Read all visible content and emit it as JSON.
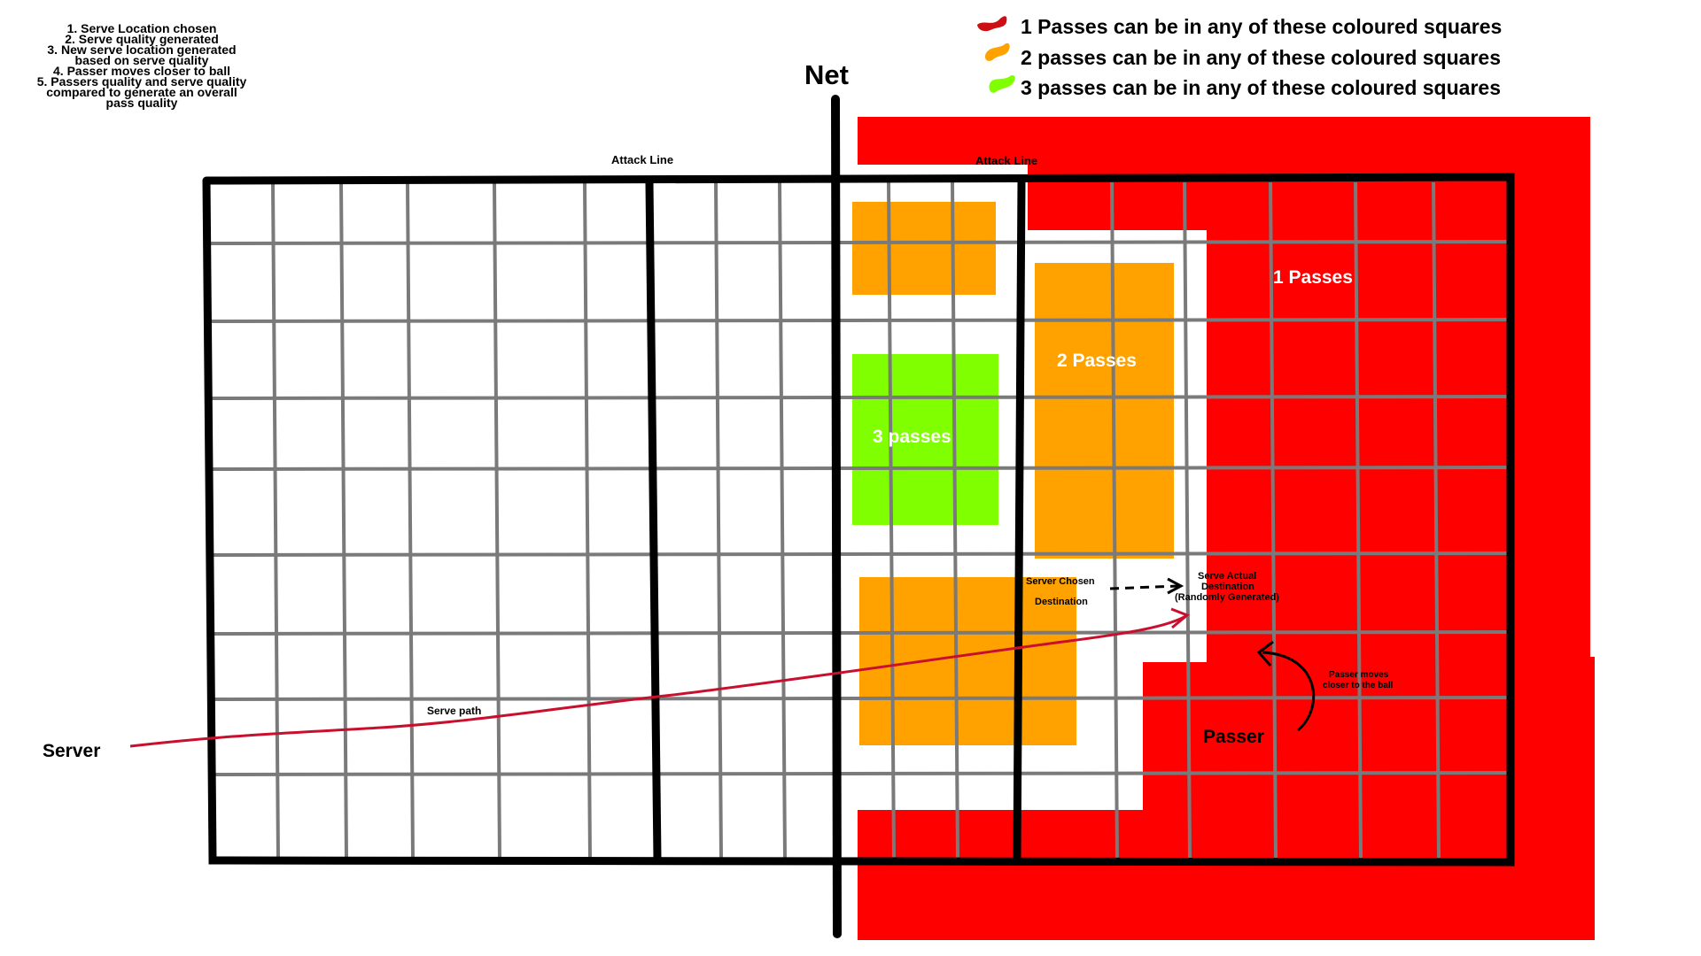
{
  "steps": [
    "1. Serve Location chosen",
    "2. Serve quality generated",
    "3. New serve location generated",
    "based on serve quality",
    "4. Passer moves closer to ball",
    "5. Passers quality and serve quality",
    "compared to generate an overall",
    "pass quality"
  ],
  "legend": [
    {
      "label": "1 Passes can be in any of these coloured squares",
      "color": "#cc0e15"
    },
    {
      "label": "2 passes can be in any of these coloured squares",
      "color": "#ffa200"
    },
    {
      "label": "3 passes can be in any of these coloured squares",
      "color": "#7fff00"
    }
  ],
  "labels": {
    "net": "Net",
    "attack_line_left": "Attack Line",
    "attack_line_right": "Attack Line",
    "zone_1": "1 Passes",
    "zone_2": "2 Passes",
    "zone_3": "3 passes",
    "server_chosen_1": "Server Chosen",
    "server_chosen_2": "Destination",
    "actual_1": "Serve Actual",
    "actual_2": "Destination",
    "actual_3": "(Randomly Generated)",
    "passer_moves_1": "Passer moves",
    "passer_moves_2": "closer to the ball",
    "passer": "Passer",
    "server": "Server",
    "serve_path": "Serve path"
  },
  "colors": {
    "one_pass": "#ff0000",
    "two_pass": "#ffa200",
    "three_pass": "#80ff00",
    "serve_path": "#c8102e",
    "grid": "#7a7a7a",
    "court": "#000000"
  }
}
